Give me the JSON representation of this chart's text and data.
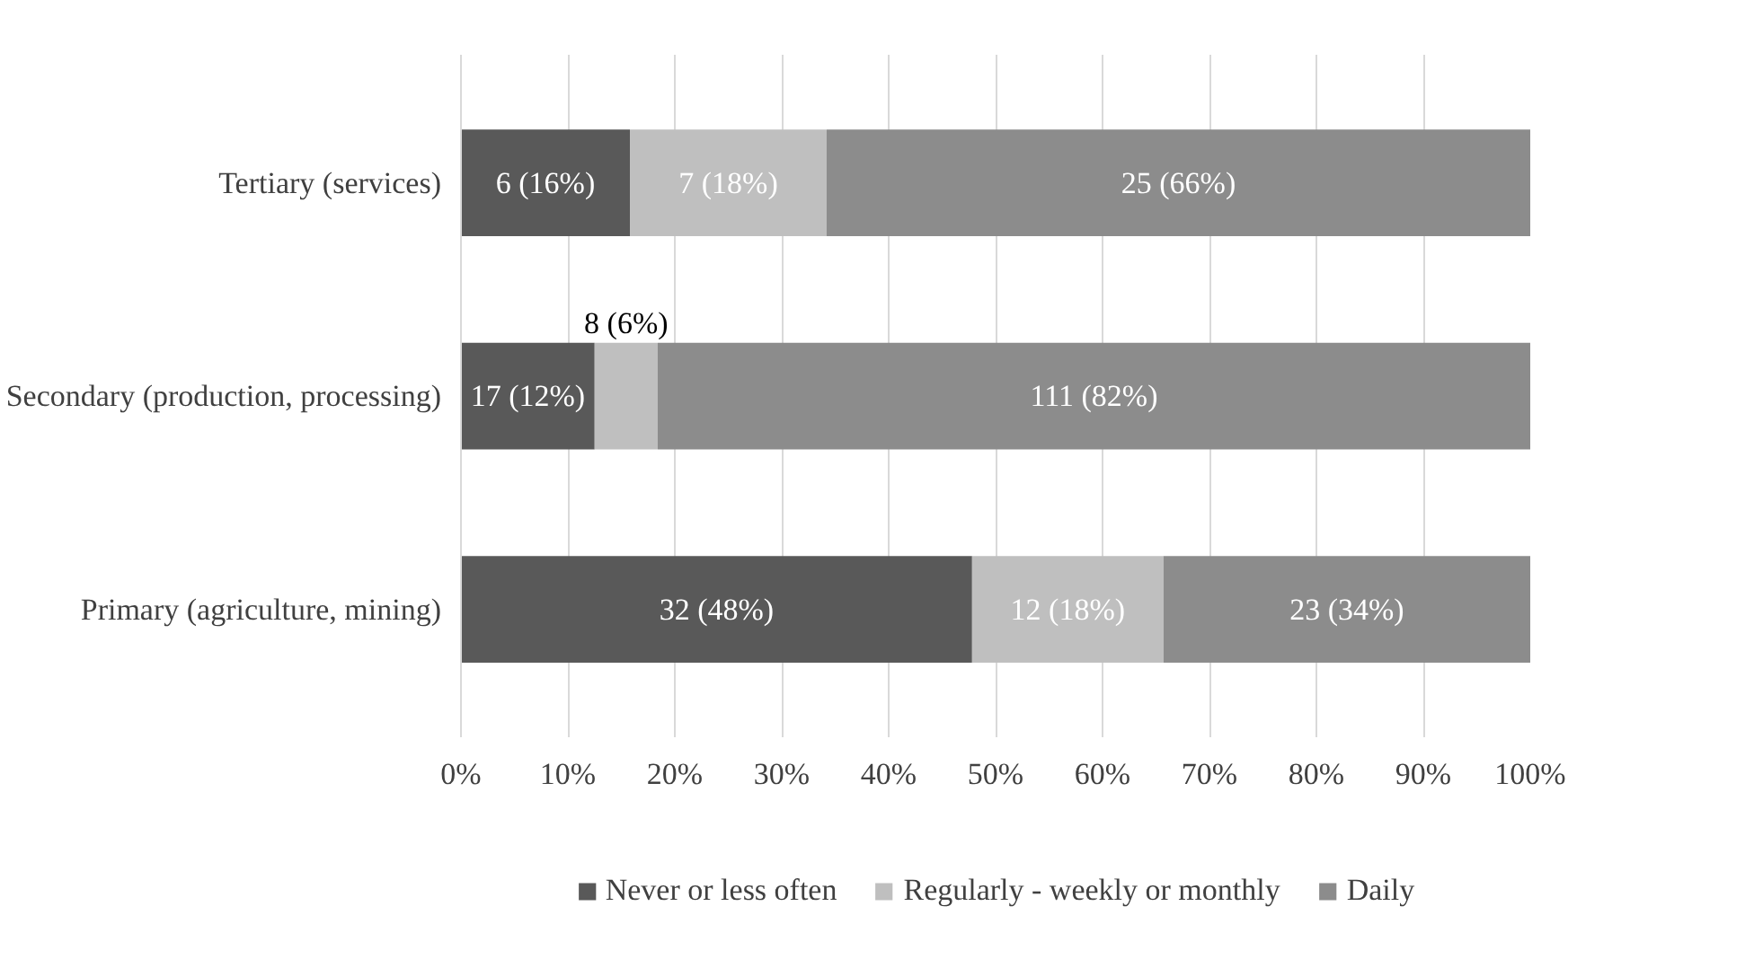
{
  "chart_data": {
    "type": "bar",
    "orientation": "horizontal",
    "stacked": true,
    "categories": [
      "Tertiary (services)",
      "Secondary (production, processing)",
      "Primary (agriculture, mining)"
    ],
    "series": [
      {
        "name": "Never or less often",
        "color": "#595959",
        "values": [
          15.8,
          12.5,
          47.8
        ],
        "value_labels": [
          "6 (16%)",
          "17 (12%)",
          "32 (48%)"
        ]
      },
      {
        "name": "Regularly - weekly or monthly",
        "color": "#bfbfbf",
        "values": [
          18.4,
          5.9,
          17.9
        ],
        "value_labels": [
          "7 (18%)",
          "8 (6%)",
          "12 (18%)"
        ]
      },
      {
        "name": "Daily",
        "color": "#8c8c8c",
        "values": [
          65.8,
          81.6,
          34.3
        ],
        "value_labels": [
          "25 (66%)",
          "111 (82%)",
          "23 (34%)"
        ]
      }
    ],
    "xlim": [
      0,
      100
    ],
    "xticks": [
      {
        "value": 0,
        "label": "0%"
      },
      {
        "value": 10,
        "label": "10%"
      },
      {
        "value": 20,
        "label": "20%"
      },
      {
        "value": 30,
        "label": "30%"
      },
      {
        "value": 40,
        "label": "40%"
      },
      {
        "value": 50,
        "label": "50%"
      },
      {
        "value": 60,
        "label": "60%"
      },
      {
        "value": 70,
        "label": "70%"
      },
      {
        "value": 80,
        "label": "80%"
      },
      {
        "value": 90,
        "label": "90%"
      },
      {
        "value": 100,
        "label": "100%"
      }
    ],
    "grid": "x",
    "legend": "bottom"
  }
}
